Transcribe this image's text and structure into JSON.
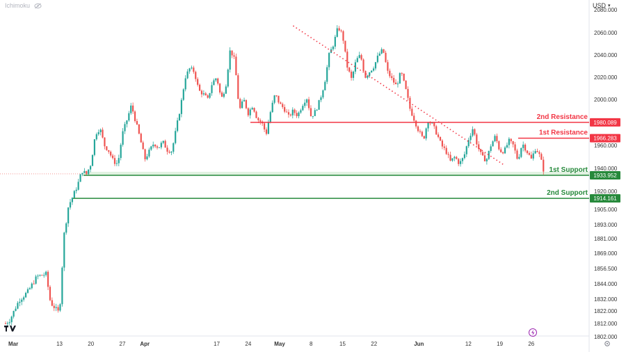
{
  "header": {
    "indicator": "Ichimoku",
    "currency": "USD"
  },
  "colors": {
    "up": "#26a69a",
    "down": "#ef5350",
    "resistance": "#f23645",
    "support": "#26893b",
    "tv_logo": "#131722"
  },
  "chart_data": {
    "type": "candlestick",
    "y_axis": {
      "labels": [
        "2080.000",
        "2060.000",
        "2040.000",
        "2020.000",
        "2000.000",
        "1980.000",
        "1960.000",
        "1940.000",
        "1920.000",
        "1905.000",
        "1893.000",
        "1881.000",
        "1869.000",
        "1856.500",
        "1844.000",
        "1832.000",
        "1822.000",
        "1812.000",
        "1802.000"
      ],
      "values": [
        2080,
        2060,
        2040,
        2020,
        2000,
        1980,
        1960,
        1940,
        1920,
        1905,
        1893,
        1881,
        1869,
        1856.5,
        1844,
        1832,
        1822,
        1812,
        1802
      ],
      "scale": "non-linear (compressed below 1920)"
    },
    "x_axis": {
      "labels": [
        "Mar",
        "13",
        "20",
        "27",
        "Apr",
        "17",
        "24",
        "May",
        "8",
        "15",
        "22",
        "Jun",
        "12",
        "19",
        "26"
      ],
      "day_index": [
        0,
        12,
        19,
        26,
        31,
        47,
        54,
        61,
        68,
        75,
        82,
        92,
        103,
        110,
        117
      ]
    },
    "levels": [
      {
        "name": "2nd Resistance",
        "value": "1980.089",
        "price": 1980.089,
        "kind": "resistance"
      },
      {
        "name": "1st Resistance",
        "value": "1966.283",
        "price": 1966.283,
        "kind": "resistance"
      },
      {
        "name": "1st Support",
        "value": "1933.952",
        "price": 1933.952,
        "kind": "support"
      },
      {
        "name": "2nd Support",
        "value": "1914.161",
        "price": 1914.161,
        "kind": "support"
      }
    ],
    "trendline": {
      "style": "dotted",
      "from": {
        "day": 64,
        "price": 2066
      },
      "to": {
        "day": 108,
        "price": 1951
      }
    },
    "series_path": [
      [
        0,
        1812
      ],
      [
        1,
        1815
      ],
      [
        3,
        1831
      ],
      [
        5,
        1838
      ],
      [
        7,
        1850
      ],
      [
        9,
        1852
      ],
      [
        10,
        1829
      ],
      [
        12,
        1820
      ],
      [
        13,
        1884
      ],
      [
        14,
        1908
      ],
      [
        15,
        1916
      ],
      [
        16,
        1925
      ],
      [
        17,
        1938
      ],
      [
        18,
        1935
      ],
      [
        19,
        1944
      ],
      [
        20,
        1970
      ],
      [
        21,
        1975
      ],
      [
        22,
        1960
      ],
      [
        23,
        1955
      ],
      [
        24,
        1946
      ],
      [
        25,
        1944
      ],
      [
        26,
        1970
      ],
      [
        27,
        1982
      ],
      [
        28,
        1995
      ],
      [
        29,
        1980
      ],
      [
        30,
        1965
      ],
      [
        31,
        1948
      ],
      [
        32,
        1955
      ],
      [
        33,
        1962
      ],
      [
        34,
        1958
      ],
      [
        35,
        1963
      ],
      [
        36,
        1956
      ],
      [
        37,
        1955
      ],
      [
        38,
        1975
      ],
      [
        39,
        1995
      ],
      [
        40,
        2020
      ],
      [
        41,
        2028
      ],
      [
        42,
        2025
      ],
      [
        43,
        2008
      ],
      [
        44,
        2005
      ],
      [
        45,
        2000
      ],
      [
        46,
        2015
      ],
      [
        47,
        2020
      ],
      [
        48,
        2000
      ],
      [
        49,
        2012
      ],
      [
        50,
        2045
      ],
      [
        51,
        2035
      ],
      [
        52,
        1990
      ],
      [
        53,
        2000
      ],
      [
        54,
        1988
      ],
      [
        55,
        1995
      ],
      [
        56,
        1983
      ],
      [
        57,
        1980
      ],
      [
        58,
        1970
      ],
      [
        59,
        1990
      ],
      [
        60,
        2005
      ],
      [
        61,
        1996
      ],
      [
        62,
        1992
      ],
      [
        63,
        1985
      ],
      [
        64,
        1990
      ],
      [
        65,
        1986
      ],
      [
        66,
        1995
      ],
      [
        67,
        2002
      ],
      [
        68,
        1985
      ],
      [
        69,
        1990
      ],
      [
        70,
        2000
      ],
      [
        71,
        2015
      ],
      [
        72,
        2040
      ],
      [
        73,
        2050
      ],
      [
        74,
        2065
      ],
      [
        75,
        2058
      ],
      [
        76,
        2030
      ],
      [
        77,
        2018
      ],
      [
        78,
        2035
      ],
      [
        79,
        2040
      ],
      [
        80,
        2020
      ],
      [
        81,
        2025
      ],
      [
        82,
        2030
      ],
      [
        83,
        2040
      ],
      [
        84,
        2045
      ],
      [
        85,
        2025
      ],
      [
        86,
        2018
      ],
      [
        87,
        2012
      ],
      [
        88,
        2025
      ],
      [
        89,
        2010
      ],
      [
        90,
        1992
      ],
      [
        91,
        1982
      ],
      [
        92,
        1972
      ],
      [
        93,
        1965
      ],
      [
        94,
        1982
      ],
      [
        95,
        1978
      ],
      [
        96,
        1970
      ],
      [
        97,
        1960
      ],
      [
        98,
        1955
      ],
      [
        99,
        1946
      ],
      [
        100,
        1950
      ],
      [
        101,
        1944
      ],
      [
        102,
        1950
      ],
      [
        103,
        1965
      ],
      [
        104,
        1975
      ],
      [
        105,
        1960
      ],
      [
        106,
        1950
      ],
      [
        107,
        1947
      ],
      [
        108,
        1960
      ],
      [
        109,
        1968
      ],
      [
        110,
        1955
      ],
      [
        111,
        1955
      ],
      [
        112,
        1964
      ],
      [
        113,
        1960
      ],
      [
        114,
        1947
      ],
      [
        115,
        1962
      ],
      [
        116,
        1955
      ],
      [
        117,
        1948
      ],
      [
        118,
        1958
      ],
      [
        119,
        1950
      ],
      [
        120,
        1934
      ]
    ]
  }
}
